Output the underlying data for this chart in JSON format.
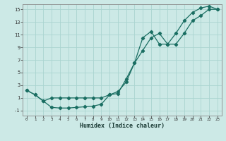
{
  "xlabel": "Humidex (Indice chaleur)",
  "background_color": "#cce9e6",
  "grid_color": "#aad4d0",
  "line_color": "#1a6e62",
  "xlim_min": -0.5,
  "xlim_max": 23.5,
  "ylim_min": -1.8,
  "ylim_max": 15.8,
  "xticks": [
    0,
    1,
    2,
    3,
    4,
    5,
    6,
    7,
    8,
    9,
    10,
    11,
    12,
    13,
    14,
    15,
    16,
    17,
    18,
    19,
    20,
    21,
    22,
    23
  ],
  "yticks": [
    -1,
    1,
    3,
    5,
    7,
    9,
    11,
    13,
    15
  ],
  "curve1_x": [
    0,
    1,
    2,
    3,
    4,
    5,
    6,
    7,
    8,
    9,
    10,
    11,
    12,
    13,
    14,
    15,
    16,
    17,
    18,
    19,
    20,
    21,
    22,
    23
  ],
  "curve1_y": [
    2.2,
    1.5,
    0.5,
    -0.5,
    -0.6,
    -0.6,
    -0.5,
    -0.4,
    -0.3,
    0.0,
    1.5,
    1.7,
    4.0,
    6.5,
    10.5,
    11.5,
    9.5,
    9.5,
    11.2,
    13.2,
    14.5,
    15.2,
    15.5,
    15.0
  ],
  "curve2_x": [
    0,
    1,
    2,
    3,
    4,
    5,
    6,
    7,
    8,
    9,
    10,
    11,
    12,
    13,
    14,
    15,
    16,
    17,
    18,
    19,
    20,
    21,
    22,
    23
  ],
  "curve2_y": [
    2.2,
    1.5,
    0.5,
    1.0,
    1.0,
    1.0,
    1.0,
    1.0,
    1.0,
    1.0,
    1.5,
    2.0,
    3.5,
    6.5,
    8.5,
    10.5,
    11.2,
    9.5,
    9.5,
    11.2,
    13.2,
    14.0,
    15.0,
    15.0
  ],
  "xlabel_fontsize": 6.0,
  "tick_fontsize_x": 4.2,
  "tick_fontsize_y": 5.0
}
